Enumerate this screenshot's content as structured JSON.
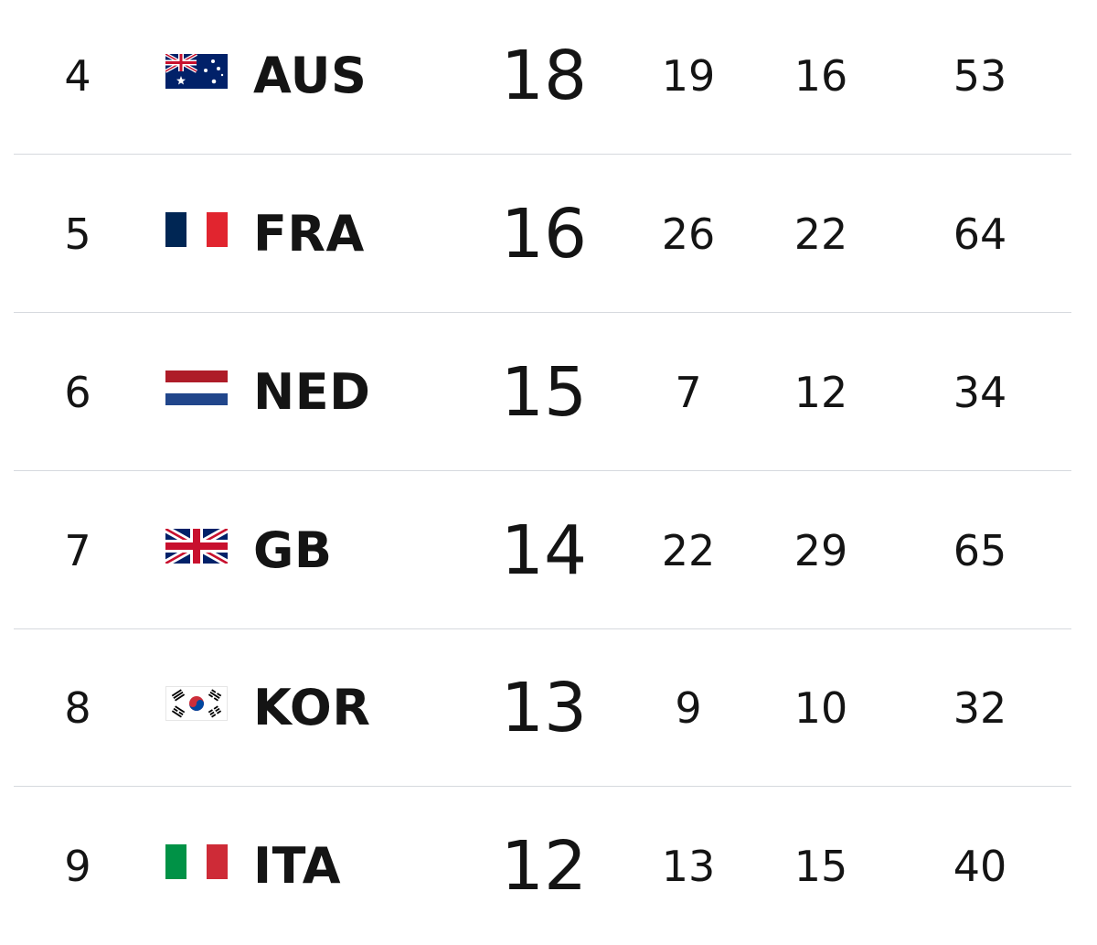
{
  "medal_table": {
    "rows": [
      {
        "rank": "4",
        "country": "AUS",
        "flag": "australia-flag",
        "gold": "18",
        "silver": "19",
        "bronze": "16",
        "total": "53"
      },
      {
        "rank": "5",
        "country": "FRA",
        "flag": "france-flag",
        "gold": "16",
        "silver": "26",
        "bronze": "22",
        "total": "64"
      },
      {
        "rank": "6",
        "country": "NED",
        "flag": "netherlands-flag",
        "gold": "15",
        "silver": "7",
        "bronze": "12",
        "total": "34"
      },
      {
        "rank": "7",
        "country": "GB",
        "flag": "great-britain-flag",
        "gold": "14",
        "silver": "22",
        "bronze": "29",
        "total": "65"
      },
      {
        "rank": "8",
        "country": "KOR",
        "flag": "south-korea-flag",
        "gold": "13",
        "silver": "9",
        "bronze": "10",
        "total": "32"
      },
      {
        "rank": "9",
        "country": "ITA",
        "flag": "italy-flag",
        "gold": "12",
        "silver": "13",
        "bronze": "15",
        "total": "40"
      }
    ]
  },
  "colors": {
    "divider": "#d6d9de",
    "text": "#141414",
    "background": "#ffffff"
  }
}
